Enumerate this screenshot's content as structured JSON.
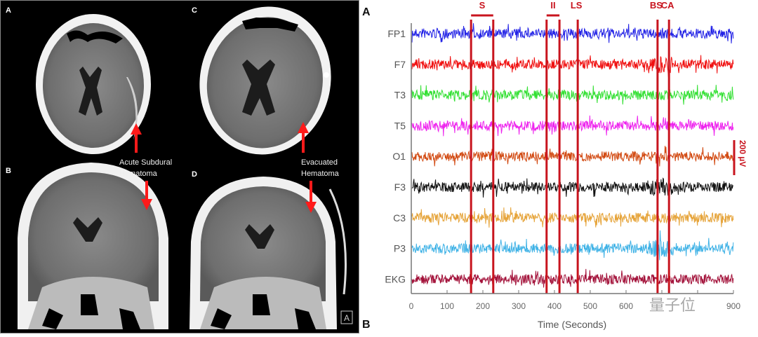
{
  "ct_panel": {
    "labels": {
      "a": "A",
      "b": "B",
      "c": "C",
      "d": "D"
    },
    "annotation_left": [
      "Acute Subdural",
      "Hematoma"
    ],
    "annotation_right": [
      "Evacuated",
      "Hematoma"
    ],
    "corner_badge": "A",
    "arrow_color": "#ff1a1a"
  },
  "watermark": "量子位",
  "chart_data": {
    "type": "line",
    "panel_label_top": "A",
    "panel_label_bottom": "B",
    "xlabel": "Time (Seconds)",
    "xlim": [
      0,
      900
    ],
    "xticks": [
      0,
      100,
      200,
      300,
      400,
      500,
      600,
      700,
      800,
      900
    ],
    "xtick_labels": [
      "0",
      "100",
      "200",
      "300",
      "400",
      "500",
      "600",
      "",
      "",
      "900"
    ],
    "grid": false,
    "scale_bar": {
      "value": 200,
      "label": "200 µV"
    },
    "series": [
      {
        "name": "FP1",
        "color": "#2222e6"
      },
      {
        "name": "F7",
        "color": "#f01010"
      },
      {
        "name": "T3",
        "color": "#33e033"
      },
      {
        "name": "T5",
        "color": "#ee22ee"
      },
      {
        "name": "O1",
        "color": "#d24a12"
      },
      {
        "name": "F3",
        "color": "#111111"
      },
      {
        "name": "C3",
        "color": "#e6a43a"
      },
      {
        "name": "P3",
        "color": "#3fb2e6"
      },
      {
        "name": "EKG",
        "color": "#a3123a"
      }
    ],
    "event_color": "#c8141e",
    "events": [
      {
        "label": "S",
        "start": 167,
        "end": 229
      },
      {
        "label": "II",
        "start": 378,
        "end": 414
      },
      {
        "label": "LS",
        "start": 465
      },
      {
        "label": "BS",
        "start": 688
      },
      {
        "label": "CA",
        "start": 720
      }
    ]
  }
}
